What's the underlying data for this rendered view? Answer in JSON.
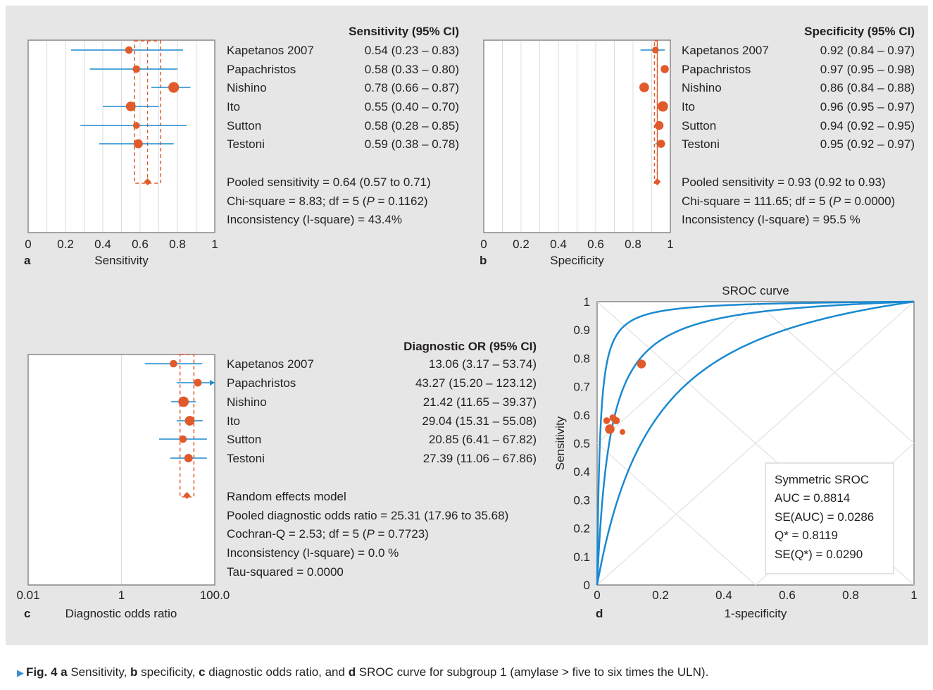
{
  "panels": {
    "a": {
      "letter": "a",
      "header": "Sensitivity (95% CI)",
      "xlabel": "Sensitivity",
      "ticks": [
        "0",
        "0.2",
        "0.4",
        "0.6",
        "0.8",
        "1"
      ],
      "summary": [
        "Pooled sensitivity = 0.64 (0.57 to 0.71)",
        "Chi-square = 8.83; df = 5 (",
        "P",
        " = 0.1162)",
        "Inconsistency (I-square) = 43.4%"
      ]
    },
    "b": {
      "letter": "b",
      "header": "Specificity (95% CI)",
      "xlabel": "Specificity",
      "ticks": [
        "0",
        "0.2",
        "0.4",
        "0.6",
        "0.8",
        "1"
      ],
      "summary": [
        "Pooled sensitivity = 0.93 (0.92 to 0.93)",
        "Chi-square = 111.65; df = 5 (",
        "P",
        " = 0.0000)",
        "Inconsistency (I-square) = 95.5 %"
      ]
    },
    "c": {
      "letter": "c",
      "header": "Diagnostic OR (95% CI)",
      "xlabel": "Diagnostic odds ratio",
      "ticks": [
        "0.01",
        "1",
        "100.0"
      ],
      "summary": [
        "Random effects model",
        "Pooled diagnostic odds ratio = 25.31 (17.96 to 35.68)",
        "Cochran-Q = 2.53; df = 5 (",
        "P",
        " = 0.7723)",
        "Inconsistency (I-square) = 0.0 %",
        "Tau-squared = 0.0000"
      ]
    },
    "d": {
      "letter": "d",
      "title": "SROC curve",
      "xlabel": "1-specificity",
      "ylabel": "Sensitivity",
      "xticks": [
        "0",
        "0.2",
        "0.4",
        "0.6",
        "0.8",
        "1"
      ],
      "yticks": [
        "0",
        "0.1",
        "0.2",
        "0.3",
        "0.4",
        "0.5",
        "0.6",
        "0.7",
        "0.8",
        "0.9",
        "1"
      ],
      "stats": [
        "Symmetric SROC",
        "AUC = 0.8814",
        "SE(AUC) = 0.0286",
        "Q* = 0.8119",
        "SE(Q*) = 0.0290"
      ]
    }
  },
  "caption": {
    "label": "Fig. 4",
    "text": " a Sensitivity, b specificity, c diagnostic odds ratio, and d SROC curve for subgroup 1 (amylase > five to six times the ULN)."
  },
  "colors": {
    "ci_line": "#1a8ad0",
    "point": "#e05a2b",
    "curve": "#1a8ad0",
    "pooled_dash": "#e05a2b",
    "background": "#e6e6e6"
  },
  "chart_data": [
    {
      "type": "forest",
      "panel": "a",
      "title": "Sensitivity (95% CI)",
      "xlabel": "Sensitivity",
      "xlim": [
        0,
        1
      ],
      "studies": [
        {
          "name": "Kapetanos 2007",
          "est": 0.54,
          "lo": 0.23,
          "hi": 0.83,
          "ci_text": "0.54 (0.23 – 0.83)",
          "weight": 1
        },
        {
          "name": "Papachristos",
          "est": 0.58,
          "lo": 0.33,
          "hi": 0.8,
          "ci_text": "0.58 (0.33 – 0.80)",
          "weight": 1
        },
        {
          "name": "Nishino",
          "est": 0.78,
          "lo": 0.66,
          "hi": 0.87,
          "ci_text": "0.78 (0.66 – 0.87)",
          "weight": 2
        },
        {
          "name": "Ito",
          "est": 0.55,
          "lo": 0.4,
          "hi": 0.7,
          "ci_text": "0.55 (0.40 – 0.70)",
          "weight": 1.7
        },
        {
          "name": "Sutton",
          "est": 0.58,
          "lo": 0.28,
          "hi": 0.85,
          "ci_text": "0.58 (0.28 – 0.85)",
          "weight": 0.8
        },
        {
          "name": "Testoni",
          "est": 0.59,
          "lo": 0.38,
          "hi": 0.78,
          "ci_text": "0.59 (0.38 – 0.78)",
          "weight": 1.5
        }
      ],
      "pooled": {
        "est": 0.64,
        "lo": 0.57,
        "hi": 0.71
      }
    },
    {
      "type": "forest",
      "panel": "b",
      "title": "Specificity (95% CI)",
      "xlabel": "Specificity",
      "xlim": [
        0,
        1
      ],
      "studies": [
        {
          "name": "Kapetanos 2007",
          "est": 0.92,
          "lo": 0.84,
          "hi": 0.97,
          "ci_text": "0.92 (0.84 – 0.97)",
          "weight": 0.8
        },
        {
          "name": "Papachristos",
          "est": 0.97,
          "lo": 0.95,
          "hi": 0.98,
          "ci_text": "0.97 (0.95 – 0.98)",
          "weight": 1.2
        },
        {
          "name": "Nishino",
          "est": 0.86,
          "lo": 0.84,
          "hi": 0.88,
          "ci_text": "0.86 (0.84 – 0.88)",
          "weight": 1.7
        },
        {
          "name": "Ito",
          "est": 0.96,
          "lo": 0.95,
          "hi": 0.97,
          "ci_text": "0.96 (0.95 – 0.97)",
          "weight": 1.9
        },
        {
          "name": "Sutton",
          "est": 0.94,
          "lo": 0.92,
          "hi": 0.95,
          "ci_text": "0.94 (0.92 – 0.95)",
          "weight": 1.4
        },
        {
          "name": "Testoni",
          "est": 0.95,
          "lo": 0.92,
          "hi": 0.97,
          "ci_text": "0.95 (0.92 – 0.97)",
          "weight": 1.2
        }
      ],
      "pooled": {
        "est": 0.93,
        "lo": 0.92,
        "hi": 0.93
      }
    },
    {
      "type": "forest",
      "panel": "c",
      "title": "Diagnostic OR (95% CI)",
      "xlabel": "Diagnostic odds ratio",
      "xscale": "log",
      "xlim": [
        0.01,
        100
      ],
      "studies": [
        {
          "name": "Kapetanos 2007",
          "est": 13.06,
          "lo": 3.17,
          "hi": 53.74,
          "ci_text": "13.06 (3.17 – 53.74)",
          "weight": 1
        },
        {
          "name": "Papachristos",
          "est": 43.27,
          "lo": 15.2,
          "hi": 123.12,
          "ci_text": "43.27 (15.20 – 123.12)",
          "weight": 1.1
        },
        {
          "name": "Nishino",
          "est": 21.42,
          "lo": 11.65,
          "hi": 39.37,
          "ci_text": "21.42 (11.65 – 39.37)",
          "weight": 1.9
        },
        {
          "name": "Ito",
          "est": 29.04,
          "lo": 15.31,
          "hi": 55.08,
          "ci_text": "29.04 (15.31 – 55.08)",
          "weight": 1.7
        },
        {
          "name": "Sutton",
          "est": 20.85,
          "lo": 6.41,
          "hi": 67.82,
          "ci_text": "20.85 (6.41 – 67.82)",
          "weight": 1
        },
        {
          "name": "Testoni",
          "est": 27.39,
          "lo": 11.06,
          "hi": 67.86,
          "ci_text": "27.39 (11.06 – 67.86)",
          "weight": 1.3
        }
      ],
      "pooled": {
        "est": 25.31,
        "lo": 17.96,
        "hi": 35.68
      }
    },
    {
      "type": "scatter",
      "panel": "d",
      "title": "SROC curve",
      "xlabel": "1-specificity",
      "ylabel": "Sensitivity",
      "xlim": [
        0,
        1
      ],
      "ylim": [
        0,
        1
      ],
      "grid": "diagonal",
      "points": [
        {
          "x": 0.08,
          "y": 0.54,
          "weight": 0.8
        },
        {
          "x": 0.03,
          "y": 0.58,
          "weight": 1.1
        },
        {
          "x": 0.14,
          "y": 0.78,
          "weight": 1.7
        },
        {
          "x": 0.04,
          "y": 0.55,
          "weight": 1.9
        },
        {
          "x": 0.06,
          "y": 0.58,
          "weight": 1.3
        },
        {
          "x": 0.05,
          "y": 0.59,
          "weight": 1.2
        }
      ],
      "curves": [
        {
          "dor": 114
        },
        {
          "dor": 25.31
        },
        {
          "dor": 6.2
        }
      ],
      "legend": "bottom-right"
    }
  ]
}
